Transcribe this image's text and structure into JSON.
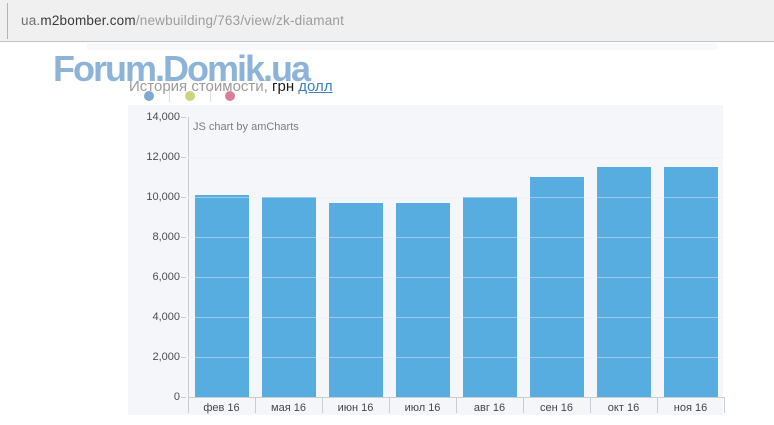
{
  "browser": {
    "url_prefix": "ua.",
    "url_host": "m2bomber.com",
    "url_path": "/newbuilding/763/view/zk-diamant"
  },
  "page": {
    "logo": "Forum.Domik.ua",
    "subtitle_prefix": "История стоимости,",
    "currency_selected": "грн",
    "currency_link": "долл",
    "dot_colors": [
      "#7fa8d3",
      "#ccd47f",
      "#db7f97"
    ]
  },
  "chart_data": {
    "type": "bar",
    "title": "История стоимости, грн",
    "watermark": "JS chart by amCharts",
    "categories": [
      "фев 16",
      "мая 16",
      "июн 16",
      "июл 16",
      "авг 16",
      "сен 16",
      "окт 16",
      "ноя 16"
    ],
    "values": [
      10100,
      10000,
      9700,
      9700,
      10000,
      11000,
      11500,
      11500
    ],
    "xlabel": "",
    "ylabel": "",
    "ylim": [
      0,
      14000
    ],
    "ytick_step": 2000,
    "ytick_labels": [
      "0",
      "2,000",
      "4,000",
      "6,000",
      "8,000",
      "10,000",
      "12,000",
      "14,000"
    ],
    "bar_color": "#57ace0",
    "grid": true,
    "legend": false
  }
}
